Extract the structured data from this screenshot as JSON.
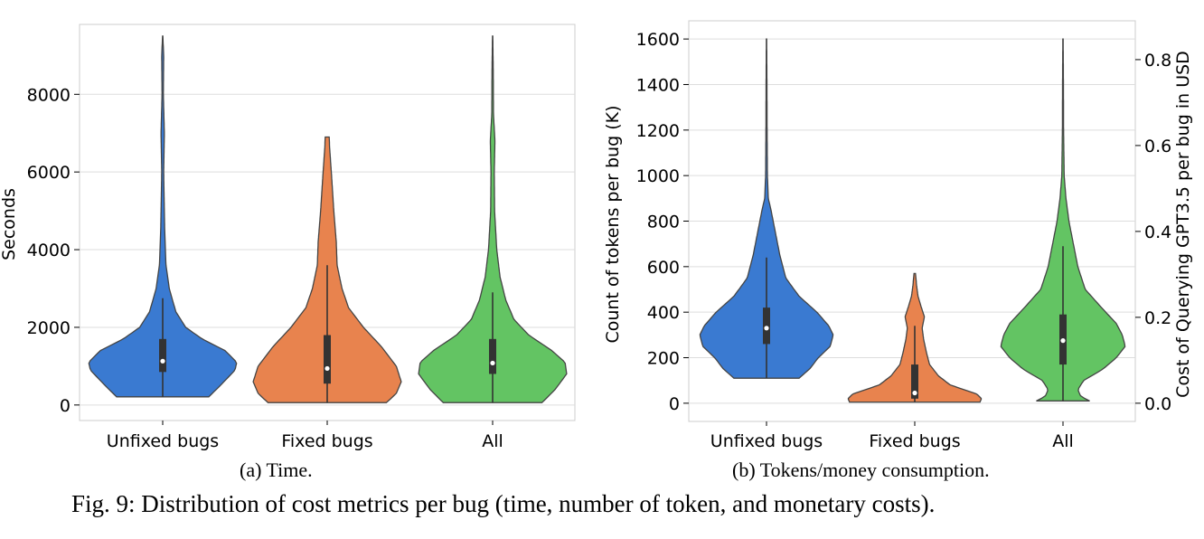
{
  "figure_caption": "Fig. 9: Distribution of cost metrics per bug (time, number of token, and monetary costs).",
  "colors": {
    "unfixed": "#3a7ad1",
    "fixed": "#e8834e",
    "all": "#63c463",
    "grid": "#dddddd",
    "axis": "#cccccc"
  },
  "chart_data": [
    {
      "type": "violin",
      "caption": "(a) Time.",
      "title": "",
      "xlabel": "",
      "ylabel": "Seconds",
      "ylim": [
        -400,
        9800
      ],
      "yticks": [
        0,
        2000,
        4000,
        6000,
        8000
      ],
      "ytick_labels": [
        "0",
        "2000",
        "4000",
        "6000",
        "8000"
      ],
      "categories": [
        "Unfixed bugs",
        "Fixed bugs",
        "All"
      ],
      "series": [
        {
          "name": "Unfixed bugs",
          "color_key": "unfixed",
          "max_halfwidth": 0.45,
          "q1": 850,
          "median": 1130,
          "q3": 1700,
          "whisker_low": 210,
          "whisker_high": 2750,
          "density": [
            [
              210,
              0.28
            ],
            [
              500,
              0.35
            ],
            [
              900,
              0.44
            ],
            [
              1100,
              0.45
            ],
            [
              1400,
              0.38
            ],
            [
              1700,
              0.24
            ],
            [
              2000,
              0.14
            ],
            [
              2400,
              0.08
            ],
            [
              3000,
              0.04
            ],
            [
              3600,
              0.02
            ],
            [
              4500,
              0.012
            ],
            [
              6000,
              0.006
            ],
            [
              7000,
              0.01
            ],
            [
              8000,
              0.004
            ],
            [
              9000,
              0.006
            ],
            [
              9500,
              0.001
            ]
          ]
        },
        {
          "name": "Fixed bugs",
          "color_key": "fixed",
          "max_halfwidth": 0.45,
          "q1": 550,
          "median": 940,
          "q3": 1800,
          "whisker_low": 60,
          "whisker_high": 3600,
          "density": [
            [
              60,
              0.36
            ],
            [
              300,
              0.42
            ],
            [
              600,
              0.45
            ],
            [
              1000,
              0.42
            ],
            [
              1500,
              0.33
            ],
            [
              2000,
              0.22
            ],
            [
              2500,
              0.13
            ],
            [
              3000,
              0.09
            ],
            [
              3600,
              0.06
            ],
            [
              4200,
              0.055
            ],
            [
              5000,
              0.04
            ],
            [
              6000,
              0.025
            ],
            [
              6600,
              0.015
            ],
            [
              6900,
              0.012
            ]
          ]
        },
        {
          "name": "All",
          "color_key": "all",
          "max_halfwidth": 0.45,
          "q1": 800,
          "median": 1080,
          "q3": 1700,
          "whisker_low": 60,
          "whisker_high": 2900,
          "density": [
            [
              60,
              0.3
            ],
            [
              400,
              0.38
            ],
            [
              800,
              0.45
            ],
            [
              1100,
              0.44
            ],
            [
              1400,
              0.36
            ],
            [
              1800,
              0.22
            ],
            [
              2200,
              0.13
            ],
            [
              2700,
              0.08
            ],
            [
              3300,
              0.045
            ],
            [
              4000,
              0.025
            ],
            [
              5000,
              0.012
            ],
            [
              6000,
              0.01
            ],
            [
              6800,
              0.014
            ],
            [
              7500,
              0.005
            ],
            [
              8500,
              0.004
            ],
            [
              9500,
              0.001
            ]
          ]
        }
      ]
    },
    {
      "type": "violin",
      "caption": "(b) Tokens/money consumption.",
      "title": "",
      "xlabel": "",
      "ylabel": "Count of tokens per bug (K)",
      "ylim": [
        -80,
        1680
      ],
      "yticks": [
        0,
        200,
        400,
        600,
        800,
        1000,
        1200,
        1400,
        1600
      ],
      "ytick_labels": [
        "0",
        "200",
        "400",
        "600",
        "800",
        "1000",
        "1200",
        "1400",
        "1600"
      ],
      "secondary_ylabel": "Cost of Querying GPT3.5 per bug in USD",
      "secondary_ylim": [
        -0.0424,
        0.8904
      ],
      "secondary_yticks": [
        0.0,
        0.2,
        0.4,
        0.6,
        0.8
      ],
      "secondary_ytick_labels": [
        "0.0",
        "0.2",
        "0.4",
        "0.6",
        "0.8"
      ],
      "categories": [
        "Unfixed bugs",
        "Fixed bugs",
        "All"
      ],
      "series": [
        {
          "name": "Unfixed bugs",
          "color_key": "unfixed",
          "max_halfwidth": 0.45,
          "q1": 260,
          "median": 330,
          "q3": 420,
          "whisker_low": 110,
          "whisker_high": 640,
          "density": [
            [
              110,
              0.22
            ],
            [
              150,
              0.29
            ],
            [
              200,
              0.35
            ],
            [
              250,
              0.43
            ],
            [
              300,
              0.45
            ],
            [
              340,
              0.42
            ],
            [
              400,
              0.34
            ],
            [
              470,
              0.22
            ],
            [
              550,
              0.13
            ],
            [
              650,
              0.09
            ],
            [
              750,
              0.06
            ],
            [
              850,
              0.03
            ],
            [
              900,
              0.012
            ],
            [
              1000,
              0.006
            ],
            [
              1200,
              0.004
            ],
            [
              1400,
              0.003
            ],
            [
              1600,
              0.001
            ]
          ]
        },
        {
          "name": "Fixed bugs",
          "color_key": "fixed",
          "max_halfwidth": 0.45,
          "q1": 20,
          "median": 45,
          "q3": 170,
          "whisker_low": 5,
          "whisker_high": 340,
          "density": [
            [
              5,
              0.44
            ],
            [
              20,
              0.45
            ],
            [
              40,
              0.42
            ],
            [
              60,
              0.33
            ],
            [
              80,
              0.24
            ],
            [
              120,
              0.16
            ],
            [
              170,
              0.1
            ],
            [
              220,
              0.08
            ],
            [
              280,
              0.06
            ],
            [
              330,
              0.05
            ],
            [
              380,
              0.065
            ],
            [
              420,
              0.045
            ],
            [
              470,
              0.022
            ],
            [
              520,
              0.012
            ],
            [
              570,
              0.005
            ]
          ]
        },
        {
          "name": "All",
          "color_key": "all",
          "max_halfwidth": 0.45,
          "q1": 170,
          "median": 275,
          "q3": 390,
          "whisker_low": 10,
          "whisker_high": 690,
          "density": [
            [
              10,
              0.18
            ],
            [
              30,
              0.12
            ],
            [
              60,
              0.1
            ],
            [
              100,
              0.14
            ],
            [
              150,
              0.27
            ],
            [
              200,
              0.36
            ],
            [
              250,
              0.42
            ],
            [
              300,
              0.4
            ],
            [
              350,
              0.36
            ],
            [
              420,
              0.26
            ],
            [
              500,
              0.15
            ],
            [
              600,
              0.1
            ],
            [
              700,
              0.07
            ],
            [
              800,
              0.04
            ],
            [
              900,
              0.02
            ],
            [
              1000,
              0.008
            ],
            [
              1200,
              0.004
            ],
            [
              1400,
              0.003
            ],
            [
              1600,
              0.001
            ]
          ]
        }
      ]
    }
  ]
}
